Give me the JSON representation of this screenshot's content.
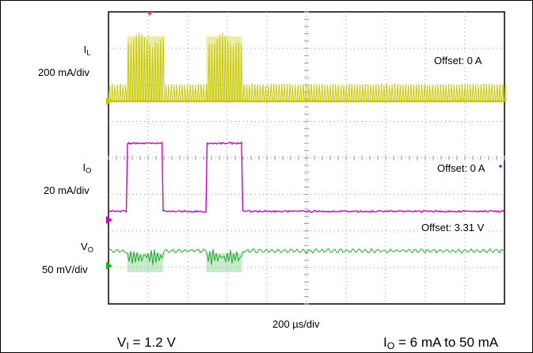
{
  "chart_data": {
    "type": "line",
    "xlabel": "200 µs/div",
    "grid": true,
    "divisions": {
      "x": 10,
      "y": 8
    },
    "colors": {
      "IL": "#c8c800",
      "IO": "#cc00cc",
      "VO": "#22aa33",
      "grid": "#9a9a9a"
    },
    "channels": [
      {
        "id": "IL",
        "name": "I",
        "sub": "L",
        "scale": "200 mA/div",
        "offset": "Offset: 0 A",
        "load_steps_div": [
          [
            0.47,
            1.37
          ],
          [
            2.47,
            3.37
          ]
        ]
      },
      {
        "id": "IO",
        "name": "I",
        "sub": "O",
        "scale": "20 mA/div",
        "offset": "Offset: 0 A",
        "load_steps_div": [
          [
            0.47,
            1.37
          ],
          [
            2.47,
            3.37
          ]
        ],
        "low_mA": 6,
        "high_mA": 50
      },
      {
        "id": "VO",
        "name": "V",
        "sub": "O",
        "scale": "50 mV/div",
        "offset": "Offset: 3.31 V",
        "load_steps_div": [
          [
            0.47,
            1.37
          ],
          [
            2.47,
            3.37
          ]
        ]
      }
    ],
    "conditions": {
      "vin": {
        "name": "V",
        "sub": "I",
        "value": " = 1.2 V"
      },
      "io": {
        "name": "I",
        "sub": "O",
        "value": " = 6 mA to 50 mA"
      }
    }
  }
}
